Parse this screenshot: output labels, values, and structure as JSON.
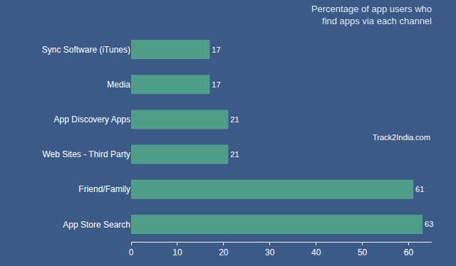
{
  "chart_data": {
    "type": "bar",
    "orientation": "horizontal",
    "title": "Percentage of app users who find apps via each channel",
    "categories": [
      "Sync Software (iTunes)",
      "Media",
      "App Discovery Apps",
      "Web Sites - Third Party",
      "Friend/Family",
      "App Store Search"
    ],
    "values": [
      17,
      17,
      21,
      21,
      61,
      63
    ],
    "color": "#4f9f88",
    "xlim": [
      0,
      65
    ],
    "xticks": [
      0,
      10,
      20,
      30,
      40,
      50,
      60
    ],
    "grid": false,
    "data_labels": true,
    "annotations": [
      {
        "text": "Track2India.com"
      }
    ]
  }
}
